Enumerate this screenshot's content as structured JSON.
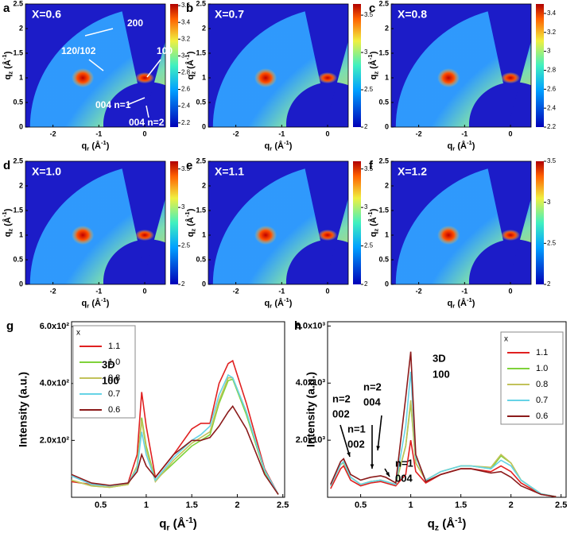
{
  "maps": {
    "xlabel": {
      "q": "q",
      "sub": "r",
      "unit": " (Å",
      "sup": "-1",
      "close": ")"
    },
    "ylabel": {
      "q": "q",
      "sub": "z",
      "unit": " (Å",
      "sup": "-1",
      "close": ")"
    },
    "xlim": [
      -2.6,
      0.45
    ],
    "ylim": [
      0,
      2.5
    ],
    "xticks": [
      -2,
      -1,
      0
    ],
    "yticks": [
      0,
      0.5,
      1,
      1.5,
      2,
      2.5
    ],
    "panels": [
      {
        "label": "a",
        "title": "X=0.6",
        "clim": [
          2.15,
          3.62
        ],
        "cticks": [
          2.2,
          2.4,
          2.6,
          2.8,
          3,
          3.2,
          3.4,
          3.6
        ],
        "annotations": [
          "200",
          "100",
          "120/102",
          "004 n=1",
          "004 n=2"
        ]
      },
      {
        "label": "b",
        "title": "X=0.7",
        "clim": [
          2,
          3.65
        ],
        "cticks": [
          2,
          2.5,
          3,
          3.5
        ]
      },
      {
        "label": "c",
        "title": "X=0.8",
        "clim": [
          2.2,
          3.5
        ],
        "cticks": [
          2.2,
          2.4,
          2.6,
          2.8,
          3,
          3.2,
          3.4
        ]
      },
      {
        "label": "d",
        "title": "X=1.0",
        "clim": [
          2,
          3.6
        ],
        "cticks": [
          2,
          2.5,
          3,
          3.5
        ]
      },
      {
        "label": "e",
        "title": "X=1.1",
        "clim": [
          2,
          3.6
        ],
        "cticks": [
          2,
          2.5,
          3,
          3.5
        ]
      },
      {
        "label": "f",
        "title": "X=1.2",
        "clim": [
          2,
          3.5
        ],
        "cticks": [
          2,
          2.5,
          3,
          3.5
        ]
      }
    ]
  },
  "chart_data": [
    {
      "type": "line",
      "label": "g",
      "ylabel": "Intensity (a.u.)",
      "xlabel": {
        "q": "q",
        "sub": "r",
        "unit": " (Å",
        "sup": "-1",
        "close": ")"
      },
      "xlim": [
        0.18,
        2.52
      ],
      "ylim": [
        0,
        617
      ],
      "xticks": [
        0.5,
        1.0,
        1.5,
        2.0,
        2.5
      ],
      "yticks": [
        {
          "value": 200,
          "label": "2.0x10²"
        },
        {
          "value": 400,
          "label": "4.0x10²"
        },
        {
          "value": 600,
          "label": "6.0x10²"
        }
      ],
      "legend_title": "x",
      "annotations": [
        "3D",
        "100"
      ],
      "x": [
        0.18,
        0.4,
        0.6,
        0.8,
        0.9,
        0.95,
        1.0,
        1.1,
        1.3,
        1.5,
        1.6,
        1.7,
        1.8,
        1.9,
        1.95,
        2.1,
        2.3,
        2.45
      ],
      "series": [
        {
          "name": "1.1",
          "color": "#e02020",
          "values": [
            55,
            45,
            40,
            50,
            150,
            370,
            250,
            70,
            150,
            240,
            260,
            260,
            400,
            470,
            480,
            330,
            100,
            10
          ]
        },
        {
          "name": "1.0",
          "color": "#7fd23a",
          "values": [
            60,
            40,
            35,
            45,
            110,
            280,
            180,
            60,
            120,
            180,
            200,
            220,
            330,
            410,
            415,
            290,
            90,
            10
          ]
        },
        {
          "name": "0.8",
          "color": "#c2c25a",
          "values": [
            60,
            40,
            35,
            45,
            110,
            270,
            170,
            55,
            130,
            190,
            210,
            230,
            340,
            420,
            420,
            300,
            95,
            10
          ]
        },
        {
          "name": "0.7",
          "color": "#66d3e6",
          "values": [
            75,
            45,
            40,
            50,
            100,
            230,
            150,
            60,
            140,
            200,
            220,
            250,
            360,
            430,
            420,
            300,
            95,
            10
          ]
        },
        {
          "name": "0.6",
          "color": "#8b1a1a",
          "values": [
            80,
            50,
            42,
            50,
            90,
            150,
            110,
            70,
            150,
            200,
            200,
            210,
            250,
            300,
            320,
            240,
            80,
            10
          ]
        }
      ]
    },
    {
      "type": "line",
      "label": "h",
      "ylabel": "Intensity (a.u.)",
      "xlabel": {
        "q": "q",
        "sub": "z",
        "unit": " (Å",
        "sup": "-1",
        "close": ")"
      },
      "xlim": [
        0.17,
        2.55
      ],
      "ylim": [
        0,
        6150
      ],
      "xticks": [
        0.5,
        1.0,
        1.5,
        2.0,
        2.5
      ],
      "yticks": [
        {
          "value": 2000,
          "label": "2.0x10³"
        },
        {
          "value": 4000,
          "label": "4.0x10³"
        },
        {
          "value": 6000,
          "label": "6.0x10³"
        }
      ],
      "legend_title": "x",
      "annotations": [
        "3D",
        "100",
        "n=2",
        "002",
        "n=2",
        "004",
        "n=1",
        "002",
        "n=1",
        "004"
      ],
      "x": [
        0.2,
        0.3,
        0.33,
        0.4,
        0.5,
        0.6,
        0.7,
        0.75,
        0.85,
        0.95,
        1.0,
        1.05,
        1.15,
        1.3,
        1.5,
        1.6,
        1.8,
        1.9,
        2.0,
        2.1,
        2.3,
        2.45
      ],
      "series": [
        {
          "name": "1.1",
          "color": "#e02020",
          "values": [
            300,
            1000,
            1100,
            600,
            400,
            500,
            550,
            500,
            400,
            800,
            2000,
            900,
            500,
            800,
            1000,
            1000,
            900,
            1100,
            900,
            500,
            100,
            20
          ]
        },
        {
          "name": "1.0",
          "color": "#7fd23a",
          "values": [
            400,
            1150,
            1200,
            700,
            450,
            550,
            600,
            550,
            450,
            1800,
            3300,
            1200,
            600,
            900,
            1100,
            1100,
            1000,
            1450,
            1200,
            600,
            120,
            20
          ]
        },
        {
          "name": "0.8",
          "color": "#c2c25a",
          "values": [
            400,
            1150,
            1200,
            700,
            450,
            550,
            600,
            550,
            450,
            1800,
            3400,
            1200,
            600,
            900,
            1100,
            1100,
            1050,
            1500,
            1200,
            600,
            120,
            20
          ]
        },
        {
          "name": "0.7",
          "color": "#66d3e6",
          "values": [
            400,
            1150,
            1250,
            700,
            450,
            550,
            600,
            550,
            450,
            2500,
            4400,
            1400,
            600,
            900,
            1100,
            1100,
            1000,
            1300,
            1100,
            600,
            120,
            20
          ]
        },
        {
          "name": "0.6",
          "color": "#8b1a1a",
          "values": [
            450,
            1250,
            1350,
            800,
            600,
            700,
            750,
            700,
            500,
            3500,
            5100,
            1500,
            550,
            800,
            1000,
            1000,
            850,
            900,
            700,
            400,
            100,
            20
          ]
        }
      ]
    }
  ]
}
